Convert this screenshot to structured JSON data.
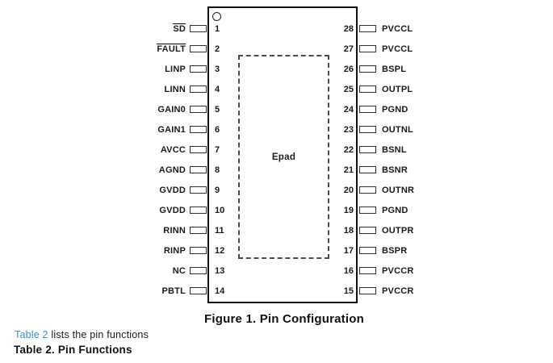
{
  "diagram": {
    "epad_label": "Epad",
    "caption": "Figure 1. Pin Configuration",
    "left_pins": [
      {
        "num": "1",
        "label": "SD",
        "overline": true
      },
      {
        "num": "2",
        "label": "FAULT",
        "overline": true
      },
      {
        "num": "3",
        "label": "LINP",
        "overline": false
      },
      {
        "num": "4",
        "label": "LINN",
        "overline": false
      },
      {
        "num": "5",
        "label": "GAIN0",
        "overline": false
      },
      {
        "num": "6",
        "label": "GAIN1",
        "overline": false
      },
      {
        "num": "7",
        "label": "AVCC",
        "overline": false
      },
      {
        "num": "8",
        "label": "AGND",
        "overline": false
      },
      {
        "num": "9",
        "label": "GVDD",
        "overline": false
      },
      {
        "num": "10",
        "label": "GVDD",
        "overline": false
      },
      {
        "num": "11",
        "label": "RINN",
        "overline": false
      },
      {
        "num": "12",
        "label": "RINP",
        "overline": false
      },
      {
        "num": "13",
        "label": "NC",
        "overline": false
      },
      {
        "num": "14",
        "label": "PBTL",
        "overline": false
      }
    ],
    "right_pins": [
      {
        "num": "28",
        "label": "PVCCL",
        "overline": false
      },
      {
        "num": "27",
        "label": "PVCCL",
        "overline": false
      },
      {
        "num": "26",
        "label": "BSPL",
        "overline": false
      },
      {
        "num": "25",
        "label": "OUTPL",
        "overline": false
      },
      {
        "num": "24",
        "label": "PGND",
        "overline": false
      },
      {
        "num": "23",
        "label": "OUTNL",
        "overline": false
      },
      {
        "num": "22",
        "label": "BSNL",
        "overline": false
      },
      {
        "num": "21",
        "label": "BSNR",
        "overline": false
      },
      {
        "num": "20",
        "label": "OUTNR",
        "overline": false
      },
      {
        "num": "19",
        "label": "PGND",
        "overline": false
      },
      {
        "num": "18",
        "label": "OUTPR",
        "overline": false
      },
      {
        "num": "17",
        "label": "BSPR",
        "overline": false
      },
      {
        "num": "16",
        "label": "PVCCR",
        "overline": false
      },
      {
        "num": "15",
        "label": "PVCCR",
        "overline": false
      }
    ]
  },
  "footer": {
    "link_text": "Table 2",
    "sentence_rest": " lists the pin functions",
    "table_caption": "Table 2. Pin Functions"
  },
  "colors": {
    "link_blue": "#3492C7",
    "line_black": "#1a1a1a"
  }
}
